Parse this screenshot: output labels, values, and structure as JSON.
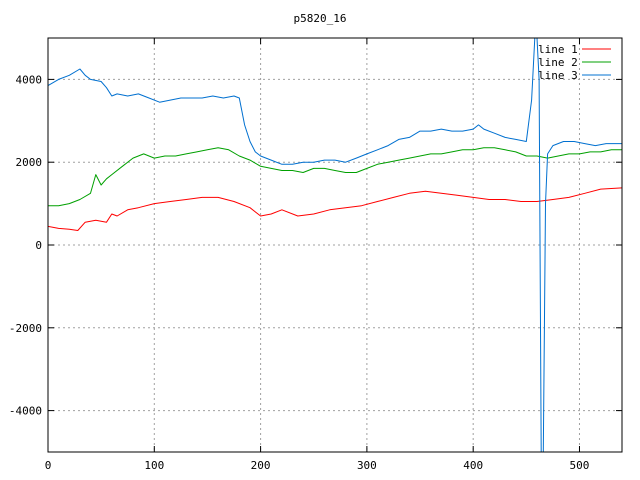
{
  "chart_data": {
    "type": "line",
    "title": "p5820_16",
    "xlim": [
      0,
      540
    ],
    "ylim": [
      -5000,
      5000
    ],
    "x_ticks": [
      0,
      100,
      200,
      300,
      400,
      500
    ],
    "y_ticks": [
      -4000,
      -2000,
      0,
      2000,
      4000
    ],
    "grid": true,
    "legend_position": "top-right",
    "series": [
      {
        "name": "line 1",
        "color": "#ff0000",
        "x": [
          0,
          10,
          20,
          28,
          35,
          45,
          55,
          60,
          65,
          75,
          85,
          100,
          115,
          130,
          145,
          160,
          175,
          190,
          200,
          210,
          220,
          235,
          250,
          265,
          280,
          295,
          310,
          325,
          340,
          355,
          370,
          385,
          400,
          415,
          430,
          445,
          460,
          475,
          490,
          505,
          520,
          540
        ],
        "y": [
          450,
          400,
          380,
          350,
          550,
          600,
          550,
          750,
          700,
          850,
          900,
          1000,
          1050,
          1100,
          1150,
          1150,
          1050,
          900,
          700,
          750,
          850,
          700,
          750,
          850,
          900,
          950,
          1050,
          1150,
          1250,
          1300,
          1250,
          1200,
          1150,
          1100,
          1100,
          1050,
          1050,
          1100,
          1150,
          1250,
          1350,
          1380
        ]
      },
      {
        "name": "line 2",
        "color": "#00a000",
        "x": [
          0,
          10,
          20,
          30,
          40,
          45,
          50,
          55,
          60,
          70,
          80,
          90,
          100,
          110,
          120,
          130,
          140,
          150,
          160,
          170,
          180,
          190,
          200,
          210,
          220,
          230,
          240,
          250,
          260,
          270,
          280,
          290,
          300,
          310,
          320,
          330,
          340,
          350,
          360,
          370,
          380,
          390,
          400,
          410,
          420,
          430,
          440,
          450,
          460,
          470,
          480,
          490,
          500,
          510,
          520,
          530,
          540
        ],
        "y": [
          950,
          950,
          1000,
          1100,
          1250,
          1700,
          1450,
          1600,
          1700,
          1900,
          2100,
          2200,
          2100,
          2150,
          2150,
          2200,
          2250,
          2300,
          2350,
          2300,
          2150,
          2050,
          1900,
          1850,
          1800,
          1800,
          1750,
          1850,
          1850,
          1800,
          1750,
          1750,
          1850,
          1950,
          2000,
          2050,
          2100,
          2150,
          2200,
          2200,
          2250,
          2300,
          2300,
          2350,
          2350,
          2300,
          2250,
          2150,
          2150,
          2100,
          2150,
          2200,
          2200,
          2250,
          2250,
          2300,
          2300
        ]
      },
      {
        "name": "line 3",
        "color": "#0070d0",
        "x": [
          0,
          10,
          20,
          30,
          35,
          40,
          50,
          55,
          60,
          65,
          75,
          85,
          95,
          105,
          115,
          125,
          135,
          145,
          155,
          165,
          175,
          180,
          185,
          190,
          195,
          200,
          210,
          220,
          230,
          240,
          250,
          260,
          270,
          280,
          290,
          300,
          310,
          320,
          330,
          340,
          350,
          360,
          370,
          380,
          390,
          400,
          405,
          410,
          420,
          430,
          440,
          450,
          455,
          458,
          460,
          462,
          464,
          466,
          468,
          470,
          475,
          485,
          495,
          505,
          515,
          525,
          540
        ],
        "y": [
          3850,
          4000,
          4100,
          4250,
          4100,
          4000,
          3950,
          3800,
          3600,
          3650,
          3600,
          3650,
          3550,
          3450,
          3500,
          3550,
          3550,
          3550,
          3600,
          3550,
          3600,
          3550,
          2900,
          2500,
          2250,
          2150,
          2050,
          1950,
          1950,
          2000,
          2000,
          2050,
          2050,
          2000,
          2100,
          2200,
          2300,
          2400,
          2550,
          2600,
          2750,
          2750,
          2800,
          2750,
          2750,
          2800,
          2900,
          2800,
          2700,
          2600,
          2550,
          2500,
          3500,
          5000,
          5000,
          4000,
          -5000,
          -5000,
          1000,
          2200,
          2400,
          2500,
          2500,
          2450,
          2400,
          2450,
          2450
        ]
      }
    ]
  }
}
